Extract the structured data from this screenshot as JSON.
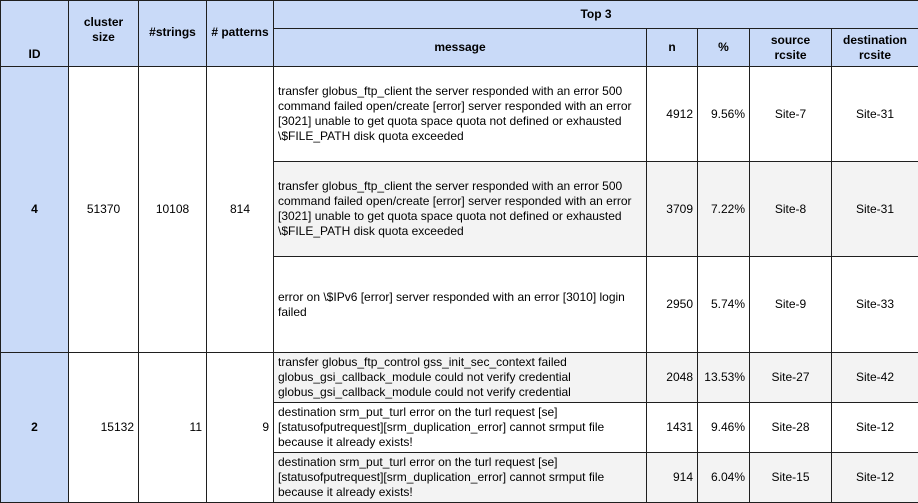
{
  "headers": {
    "id": "ID",
    "cluster_size": "cluster size",
    "strings": "#strings",
    "patterns": "# patterns",
    "top3": "Top 3",
    "message": "message",
    "n": "n",
    "pct": "%",
    "source": "source rcsite",
    "destination": "destination rcsite"
  },
  "clusters": [
    {
      "id": "4",
      "cluster_size": "51370",
      "strings": "10108",
      "patterns": "814",
      "rows": [
        {
          "message": "transfer globus_ftp_client the server responded with an error 500 command failed  open/create  [error] server responded with an error [3021] unable to get quota space  quota not defined or exhausted \\$FILE_PATH disk quota exceeded",
          "n": "4912",
          "pct": "9.56%",
          "source": "Site-7",
          "destination": "Site-31"
        },
        {
          "message": "transfer globus_ftp_client the server responded with an error 500 command failed  open/create  [error] server responded with an error [3021] unable to get quota space  quota not defined or exhausted \\$FILE_PATH disk quota exceeded",
          "n": "3709",
          "pct": "7.22%",
          "source": "Site-8",
          "destination": "Site-31"
        },
        {
          "message": "error on \\$IPv6 [error] server responded with an error [3010] login failed",
          "n": "2950",
          "pct": "5.74%",
          "source": "Site-9",
          "destination": "Site-33"
        }
      ]
    },
    {
      "id": "2",
      "cluster_size": "15132",
      "strings": "11",
      "patterns": "9",
      "rows": [
        {
          "message": "transfer globus_ftp_control gss_init_sec_context failed globus_gsi_callback_module could not verify credential globus_gsi_callback_module could not verify credential",
          "n": "2048",
          "pct": "13.53%",
          "source": "Site-27",
          "destination": "Site-42"
        },
        {
          "message": "destination srm_put_turl error on the turl request [se][statusofputrequest][srm_duplication_error] cannot srmput file because it already exists!",
          "n": "1431",
          "pct": "9.46%",
          "source": "Site-28",
          "destination": "Site-12"
        },
        {
          "message": "destination srm_put_turl error on the turl request [se][statusofputrequest][srm_duplication_error] cannot srmput file because it already exists!",
          "n": "914",
          "pct": "6.04%",
          "source": "Site-15",
          "destination": "Site-12"
        }
      ]
    }
  ]
}
